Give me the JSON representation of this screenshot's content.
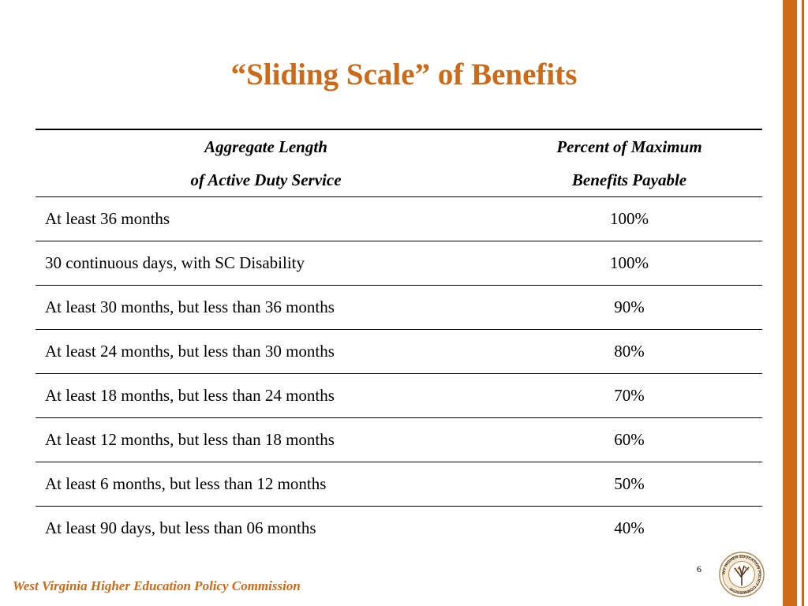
{
  "slide": {
    "title": "“Sliding Scale” of Benefits",
    "page_number": "6",
    "footer": "West Virginia Higher Education Policy Commission",
    "accent_color": "#cc6a17"
  },
  "table": {
    "header": {
      "left_line1": "Aggregate Length",
      "left_line2": "of Active Duty Service",
      "right_line1": "Percent of Maximum",
      "right_line2": "Benefits Payable"
    },
    "rows": [
      {
        "service": "At least 36 months",
        "percent": "100%"
      },
      {
        "service": "30 continuous days, with SC Disability",
        "percent": "100%"
      },
      {
        "service": "At least 30 months, but less than 36 months",
        "percent": "90%"
      },
      {
        "service": "At least 24 months, but less than 30 months",
        "percent": "80%"
      },
      {
        "service": "At least 18 months, but less than 24 months",
        "percent": "70%"
      },
      {
        "service": "At least 12 months, but less than 18 months",
        "percent": "60%"
      },
      {
        "service": "At least 6 months, but less than 12 months",
        "percent": "50%"
      },
      {
        "service": "At least 90 days, but less than 06 months",
        "percent": "40%"
      }
    ]
  },
  "seal": {
    "icon": "commission-seal-icon",
    "text": "WV HIGHER EDUCATION POLICY COMMISSION"
  }
}
